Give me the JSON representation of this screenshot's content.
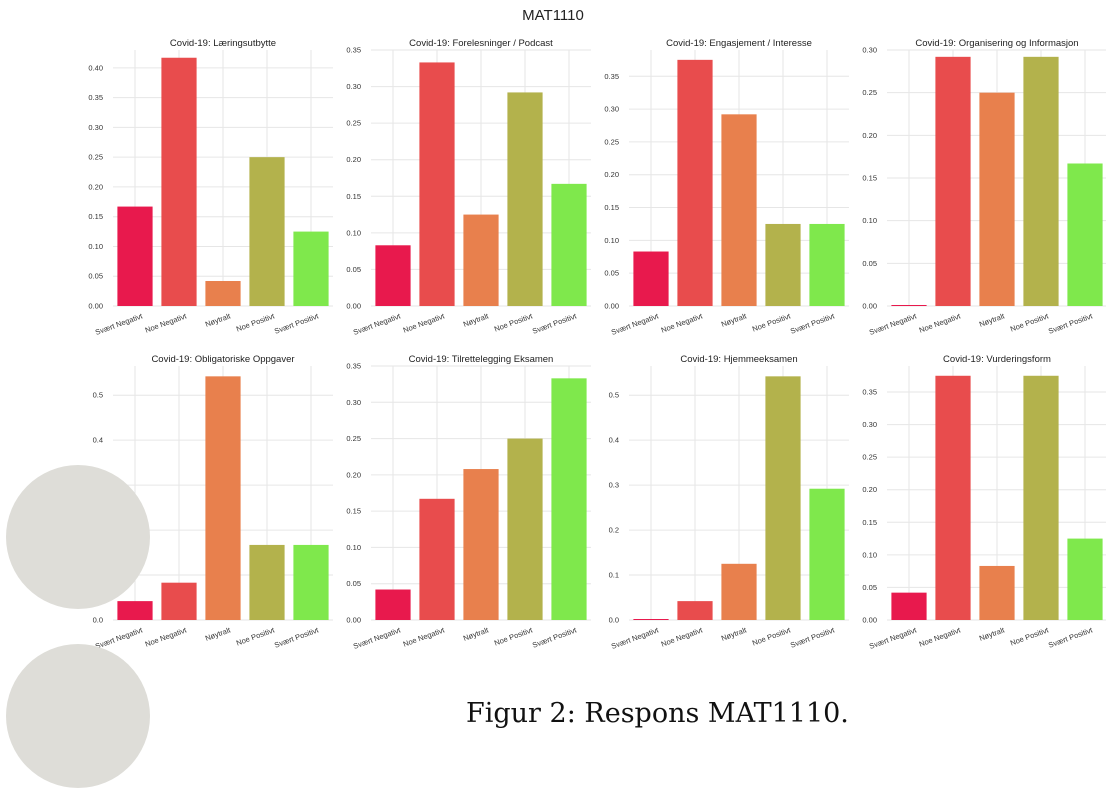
{
  "suptitle": "MAT1110",
  "caption": "Figur 2: Respons MAT1110.",
  "colors": [
    "#e8194d",
    "#e84c4d",
    "#e8804d",
    "#b3b24c",
    "#7fe84c"
  ],
  "chart_data": [
    {
      "type": "bar",
      "title": "Covid-19: Læringsutbytte",
      "categories": [
        "Svært Negativt",
        "Noe Negativt",
        "Nøytralt",
        "Noe Positivt",
        "Svært Positivt"
      ],
      "values": [
        0.167,
        0.417,
        0.042,
        0.25,
        0.125
      ],
      "ylim": [
        0,
        0.43
      ],
      "yticks": [
        "0.00",
        "0.05",
        "0.10",
        "0.15",
        "0.20",
        "0.25",
        "0.30",
        "0.35",
        "0.40"
      ],
      "ytick_values": [
        0,
        0.05,
        0.1,
        0.15,
        0.2,
        0.25,
        0.3,
        0.35,
        0.4
      ]
    },
    {
      "type": "bar",
      "title": "Covid-19: Forelesninger / Podcast",
      "categories": [
        "Svært Negativt",
        "Noe Negativt",
        "Nøytralt",
        "Noe Positivt",
        "Svært Positivt"
      ],
      "values": [
        0.083,
        0.333,
        0.125,
        0.292,
        0.167
      ],
      "ylim": [
        0,
        0.35
      ],
      "yticks": [
        "0.00",
        "0.05",
        "0.10",
        "0.15",
        "0.20",
        "0.25",
        "0.30",
        "0.35"
      ],
      "ytick_values": [
        0,
        0.05,
        0.1,
        0.15,
        0.2,
        0.25,
        0.3,
        0.35
      ]
    },
    {
      "type": "bar",
      "title": "Covid-19: Engasjement / Interesse",
      "categories": [
        "Svært Negativt",
        "Noe Negativt",
        "Nøytralt",
        "Noe Positivt",
        "Svært Positivt"
      ],
      "values": [
        0.083,
        0.375,
        0.292,
        0.125,
        0.125
      ],
      "ylim": [
        0,
        0.39
      ],
      "yticks": [
        "0.00",
        "0.05",
        "0.10",
        "0.15",
        "0.20",
        "0.25",
        "0.30",
        "0.35"
      ],
      "ytick_values": [
        0,
        0.05,
        0.1,
        0.15,
        0.2,
        0.25,
        0.3,
        0.35
      ]
    },
    {
      "type": "bar",
      "title": "Covid-19: Organisering og Informasjon",
      "categories": [
        "Svært Negativt",
        "Noe Negativt",
        "Nøytralt",
        "Noe Positivt",
        "Svært Positivt"
      ],
      "values": [
        0.0,
        0.292,
        0.25,
        0.292,
        0.167
      ],
      "ylim": [
        0,
        0.3
      ],
      "yticks": [
        "0.00",
        "0.05",
        "0.10",
        "0.15",
        "0.20",
        "0.25",
        "0.30"
      ],
      "ytick_values": [
        0,
        0.05,
        0.1,
        0.15,
        0.2,
        0.25,
        0.3
      ]
    },
    {
      "type": "bar",
      "title": "Covid-19: Obligatoriske Oppgaver",
      "categories": [
        "Svært Negativt",
        "Noe Negativt",
        "Nøytralt",
        "Noe Positivt",
        "Svært Positivt"
      ],
      "values": [
        0.042,
        0.083,
        0.542,
        0.167,
        0.167
      ],
      "ylim": [
        0,
        0.565
      ],
      "yticks": [
        "0.0",
        "0.1",
        "0.2",
        "0.3",
        "0.4",
        "0.5"
      ],
      "ytick_values": [
        0,
        0.1,
        0.2,
        0.3,
        0.4,
        0.5
      ]
    },
    {
      "type": "bar",
      "title": "Covid-19: Tilrettelegging Eksamen",
      "categories": [
        "Svært Negativt",
        "Noe Negativt",
        "Nøytralt",
        "Noe Positivt",
        "Svært Positivt"
      ],
      "values": [
        0.042,
        0.167,
        0.208,
        0.25,
        0.333
      ],
      "ylim": [
        0,
        0.35
      ],
      "yticks": [
        "0.00",
        "0.05",
        "0.10",
        "0.15",
        "0.20",
        "0.25",
        "0.30",
        "0.35"
      ],
      "ytick_values": [
        0,
        0.05,
        0.1,
        0.15,
        0.2,
        0.25,
        0.3,
        0.35
      ]
    },
    {
      "type": "bar",
      "title": "Covid-19: Hjemmeeksamen",
      "categories": [
        "Svært Negativt",
        "Noe Negativt",
        "Nøytralt",
        "Noe Positivt",
        "Svært Positivt"
      ],
      "values": [
        0.0,
        0.042,
        0.125,
        0.542,
        0.292
      ],
      "ylim": [
        0,
        0.565
      ],
      "yticks": [
        "0.0",
        "0.1",
        "0.2",
        "0.3",
        "0.4",
        "0.5"
      ],
      "ytick_values": [
        0,
        0.1,
        0.2,
        0.3,
        0.4,
        0.5
      ]
    },
    {
      "type": "bar",
      "title": "Covid-19: Vurderingsform",
      "categories": [
        "Svært Negativt",
        "Noe Negativt",
        "Nøytralt",
        "Noe Positivt",
        "Svært Positivt"
      ],
      "values": [
        0.042,
        0.375,
        0.083,
        0.375,
        0.125
      ],
      "ylim": [
        0,
        0.39
      ],
      "yticks": [
        "0.00",
        "0.05",
        "0.10",
        "0.15",
        "0.20",
        "0.25",
        "0.30",
        "0.35"
      ],
      "ytick_values": [
        0,
        0.05,
        0.1,
        0.15,
        0.2,
        0.25,
        0.3,
        0.35
      ]
    }
  ]
}
